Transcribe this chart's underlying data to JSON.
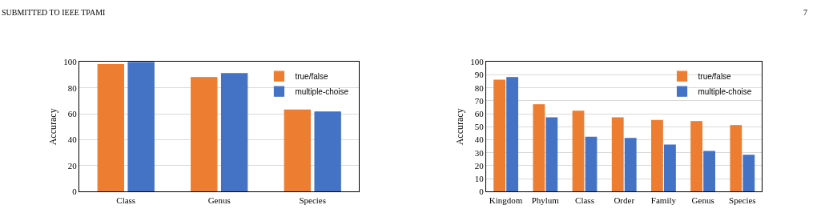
{
  "chart_data": [
    {
      "type": "bar",
      "ylabel": "Accuracy",
      "categories": [
        "Class",
        "Genus",
        "Species"
      ],
      "ylim": [
        0,
        100
      ],
      "yticks": [
        0,
        20,
        40,
        60,
        80,
        100
      ],
      "grid": "y",
      "legend": "top right",
      "annotations": [
        "SUBMITTED TO IEEE TPAMI",
        "7"
      ],
      "series": [
        {
          "name": "true/false",
          "color": "#ed7d31",
          "values": [
            98,
            88,
            63
          ]
        },
        {
          "name": "multiple-choise",
          "color": "#4472c4",
          "values": [
            100,
            91,
            61.5
          ]
        }
      ]
    },
    {
      "type": "bar",
      "ylabel": "Accuracy",
      "categories": [
        "Kingdom",
        "Phylum",
        "Class",
        "Order",
        "Family",
        "Genus",
        "Species"
      ],
      "ylim": [
        0,
        100
      ],
      "yticks": [
        0,
        10,
        20,
        30,
        40,
        50,
        60,
        70,
        80,
        90,
        100
      ],
      "grid": "y",
      "legend": "top right",
      "series": [
        {
          "name": "true/false",
          "color": "#ed7d31",
          "values": [
            86,
            67,
            62,
            57,
            55,
            54,
            51
          ]
        },
        {
          "name": "multiple-choise",
          "color": "#4472c4",
          "values": [
            88,
            57,
            42,
            41,
            36,
            31,
            28
          ]
        }
      ]
    }
  ]
}
